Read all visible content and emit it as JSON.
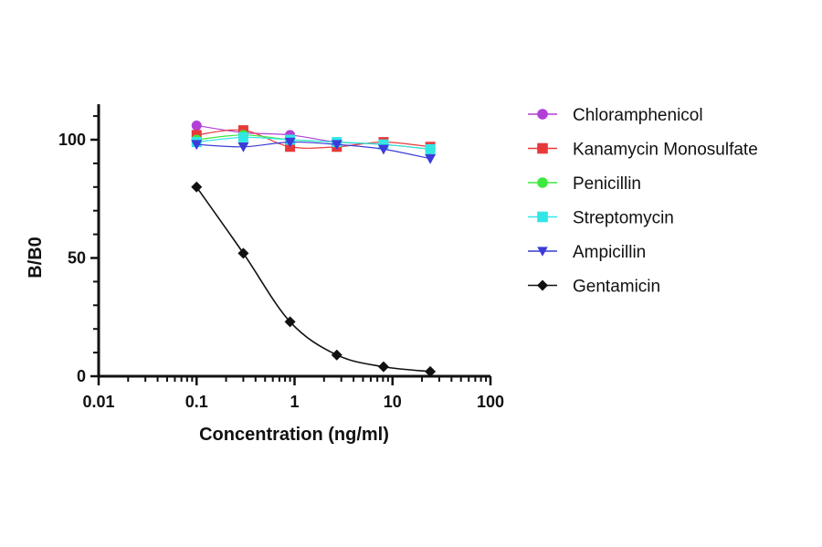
{
  "chart_data": {
    "type": "scatter",
    "xlabel": "Concentration (ng/ml)",
    "ylabel": "B/B0",
    "x_scale": "log",
    "xlim": [
      0.01,
      100
    ],
    "ylim": [
      0,
      110
    ],
    "x_ticks": [
      0.01,
      0.1,
      1,
      10,
      100
    ],
    "x_tick_labels": [
      "0.01",
      "0.1",
      "1",
      "10",
      "100"
    ],
    "y_ticks": [
      0,
      50,
      100
    ],
    "y_tick_labels": [
      "0",
      "50",
      "100"
    ],
    "grid": false,
    "legend_position": "right",
    "x": [
      0.1,
      0.3,
      0.9,
      2.7,
      8.1,
      24.3
    ],
    "series": [
      {
        "name": "Chloramphenicol",
        "color": "#b23fd6",
        "marker": "circle",
        "values": [
          106,
          103,
          102,
          99,
          98,
          96
        ]
      },
      {
        "name": "Kanamycin Monosulfate",
        "color": "#e8393a",
        "marker": "square",
        "values": [
          102,
          104,
          97,
          97,
          99,
          97
        ]
      },
      {
        "name": "Penicillin",
        "color": "#3ee83e",
        "marker": "circle",
        "values": [
          100,
          102,
          100,
          99,
          98,
          96
        ]
      },
      {
        "name": "Streptomycin",
        "color": "#33e6e6",
        "marker": "square",
        "values": [
          99,
          101,
          100,
          99,
          98,
          96
        ]
      },
      {
        "name": "Ampicillin",
        "color": "#3b3bd9",
        "marker": "triangle-down",
        "values": [
          98,
          97,
          99,
          98,
          96,
          92
        ]
      },
      {
        "name": "Gentamicin",
        "color": "#111111",
        "marker": "diamond",
        "values": [
          80,
          52,
          23,
          9,
          4,
          2
        ]
      }
    ]
  }
}
